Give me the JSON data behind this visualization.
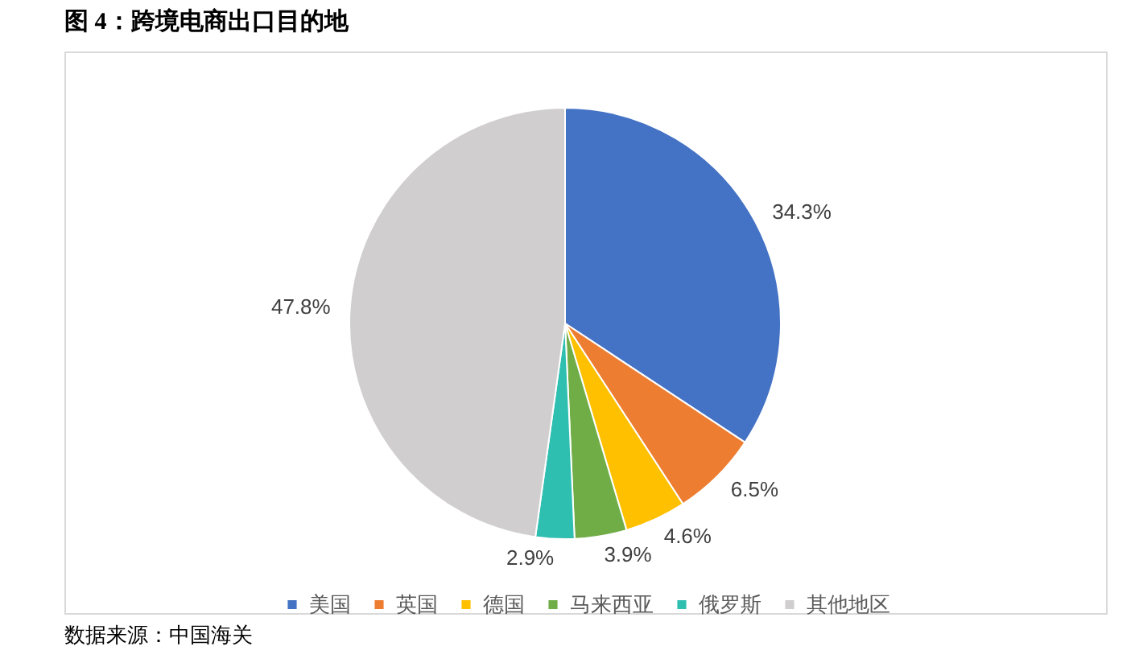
{
  "chart_data": {
    "type": "pie",
    "title": "图 4：跨境电商出口目的地",
    "categories": [
      "美国",
      "英国",
      "德国",
      "马来西亚",
      "俄罗斯",
      "其他地区"
    ],
    "values": [
      34.3,
      6.5,
      4.6,
      3.9,
      2.9,
      47.8
    ],
    "colors": [
      "#4472c4",
      "#ed7d31",
      "#ffc000",
      "#70ad47",
      "#2fbfb0",
      "#d0cecf"
    ],
    "value_labels": [
      "34.3%",
      "6.5%",
      "4.6%",
      "3.9%",
      "2.9%",
      "47.8%"
    ],
    "legend": "bottom",
    "annotations": [
      "数据来源：中国海关"
    ]
  }
}
